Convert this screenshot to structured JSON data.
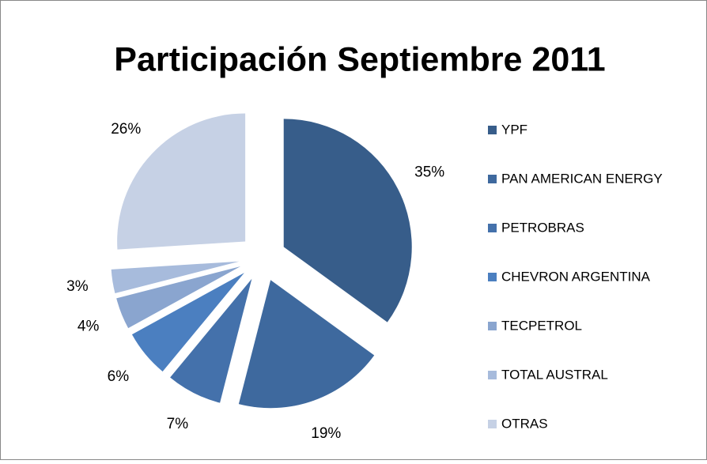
{
  "chart_data": {
    "type": "pie",
    "title": "Participación Septiembre 2011",
    "categories": [
      "YPF",
      "PAN AMERICAN ENERGY",
      "PETROBRAS",
      "CHEVRON ARGENTINA",
      "TECPETROL",
      "TOTAL AUSTRAL",
      "OTRAS"
    ],
    "values": [
      35,
      19,
      7,
      6,
      4,
      3,
      26
    ],
    "value_labels": [
      "35%",
      "19%",
      "7%",
      "6%",
      "4%",
      "3%",
      "26%"
    ],
    "colors": [
      "#375d8a",
      "#3e699e",
      "#4471ab",
      "#4b7fc0",
      "#8aa5cf",
      "#a7bbdc",
      "#c6d1e5"
    ],
    "legend": "right"
  }
}
